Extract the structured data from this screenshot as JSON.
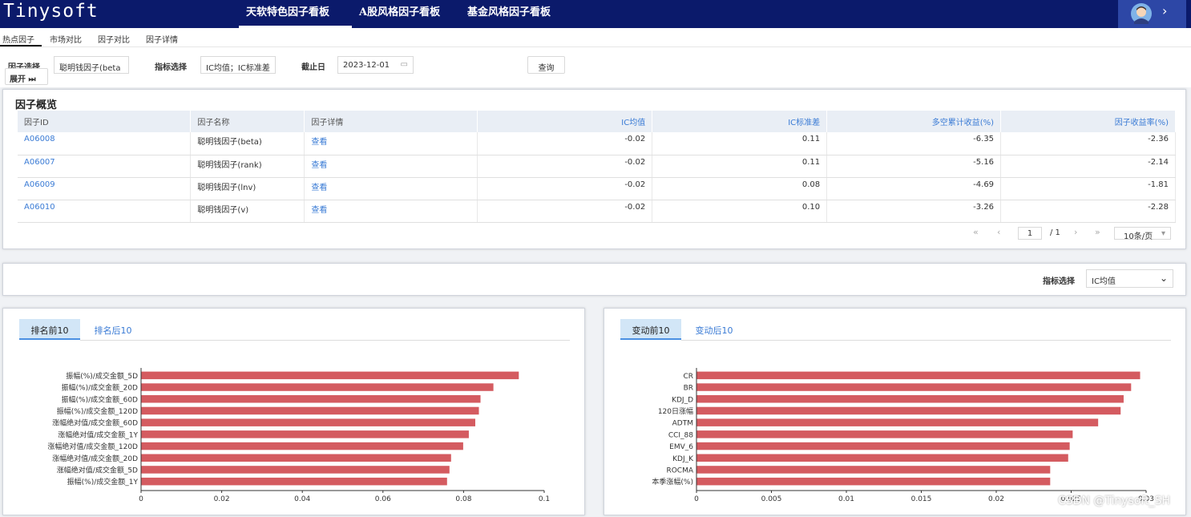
{
  "app": {
    "logo": "Tinysoft",
    "top_tabs": [
      "天软特色因子看板",
      "A股风格因子看板",
      "基金风格因子看板"
    ]
  },
  "subnav": [
    "热点因子",
    "市场对比",
    "因子对比",
    "因子详情"
  ],
  "filters": {
    "factor_label": "因子选择",
    "factor_value": "聪明钱因子(beta",
    "expand_label": "展开 ⏭",
    "indicator_label": "指标选择",
    "indicator_value": "IC均值；IC标准差",
    "date_label": "截止日",
    "date_value": "2023-12-01",
    "query_button": "查询"
  },
  "overview": {
    "title": "因子概览",
    "columns": [
      "因子ID",
      "因子名称",
      "因子详情",
      "IC均值",
      "IC标准差",
      "多空累计收益(%)",
      "因子收益率(%)"
    ],
    "rows": [
      [
        "A06008",
        "聪明钱因子(beta)",
        "查看",
        "-0.02",
        "0.11",
        "-6.35",
        "-2.36"
      ],
      [
        "A06007",
        "聪明钱因子(rank)",
        "查看",
        "-0.02",
        "0.11",
        "-5.16",
        "-2.14"
      ],
      [
        "A06009",
        "聪明钱因子(lnv)",
        "查看",
        "-0.02",
        "0.08",
        "-4.69",
        "-1.81"
      ],
      [
        "A06010",
        "聪明钱因子(v)",
        "查看",
        "-0.02",
        "0.10",
        "-3.26",
        "-2.28"
      ]
    ],
    "pager": {
      "current_page": "1",
      "total_pages": "/ 1",
      "page_size": "10条/页"
    }
  },
  "indicator_bar": {
    "label": "指标选择",
    "value": "IC均值"
  },
  "left_chart": {
    "tabs": [
      "排名前10",
      "排名后10"
    ]
  },
  "right_chart": {
    "tabs": [
      "变动前10",
      "变动后10"
    ]
  },
  "watermark": "CSDN @Tinysoft_SH",
  "chart_data": [
    {
      "type": "bar",
      "orientation": "horizontal",
      "categories": [
        "振幅(%)/成交金额_5D",
        "振幅(%)/成交金额_20D",
        "振幅(%)/成交金额_60D",
        "振幅(%)/成交金额_120D",
        "涨幅绝对值/成交金额_60D",
        "涨幅绝对值/成交金额_1Y",
        "涨幅绝对值/成交金额_120D",
        "涨幅绝对值/成交金额_20D",
        "涨幅绝对值/成交金额_5D",
        "振幅(%)/成交金额_1Y"
      ],
      "values": [
        0.0937,
        0.0874,
        0.0842,
        0.0838,
        0.0829,
        0.0813,
        0.0799,
        0.0769,
        0.0765,
        0.0759
      ],
      "xlim": [
        0,
        0.1
      ],
      "xticks": [
        "0",
        "0.02",
        "0.04",
        "0.06",
        "0.08",
        "0.1"
      ],
      "color": "#d45b60"
    },
    {
      "type": "bar",
      "orientation": "horizontal",
      "categories": [
        "CR",
        "BR",
        "KDJ_D",
        "120日涨幅",
        "ADTM",
        "CCI_88",
        "EMV_6",
        "KDJ_K",
        "ROCMA",
        "本季涨幅(%)"
      ],
      "values": [
        0.0296,
        0.029,
        0.0285,
        0.0283,
        0.0268,
        0.0251,
        0.0249,
        0.0248,
        0.0236,
        0.0236
      ],
      "xlim": [
        0,
        0.03
      ],
      "xticks": [
        "0",
        "0.005",
        "0.01",
        "0.015",
        "0.02",
        "0.025",
        "0.03"
      ],
      "color": "#d45b60"
    }
  ]
}
